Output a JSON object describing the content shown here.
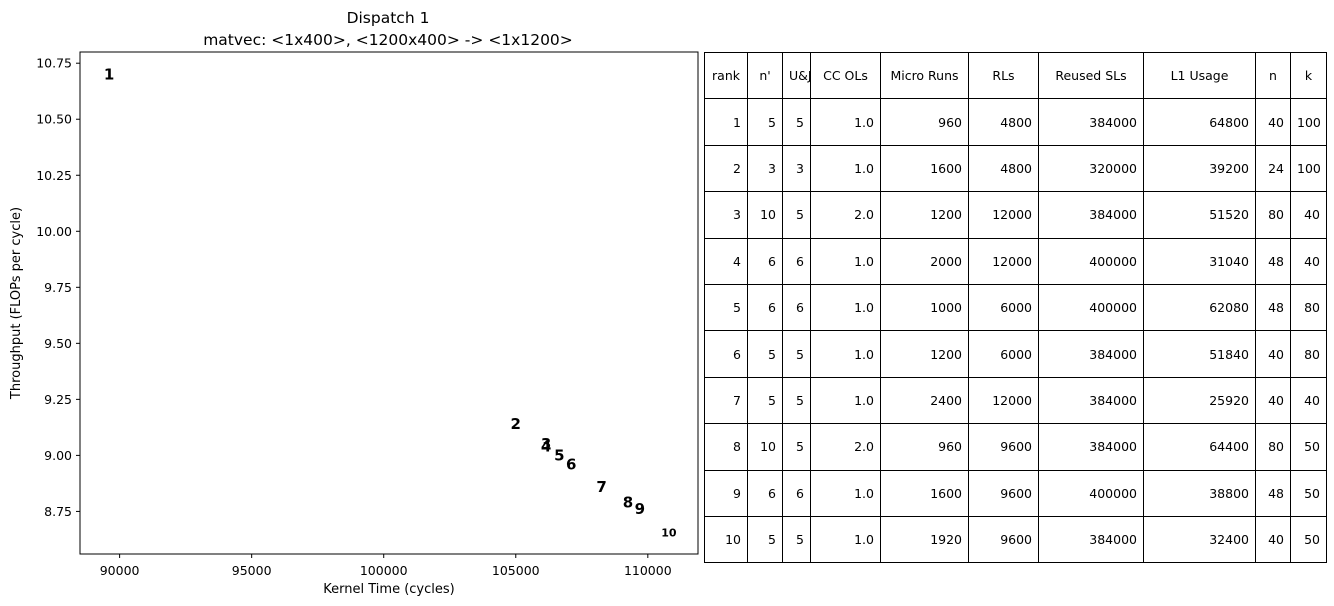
{
  "chart_data": {
    "type": "scatter",
    "title": "Dispatch 1",
    "subtitle": "matvec: <1x400>, <1200x400> -> <1x1200>",
    "xlabel": "Kernel Time (cycles)",
    "ylabel": "Throughput (FLOPs per cycle)",
    "xlim": [
      88500,
      111900
    ],
    "ylim": [
      8.56,
      10.8
    ],
    "xticks": [
      90000,
      95000,
      100000,
      105000,
      110000
    ],
    "yticks": [
      8.75,
      9.0,
      9.25,
      9.5,
      9.75,
      10.0,
      10.25,
      10.5,
      10.75
    ],
    "xtick_labels": [
      "90000",
      "95000",
      "100000",
      "105000",
      "110000"
    ],
    "ytick_labels": [
      "8.75",
      "9.00",
      "9.25",
      "9.50",
      "9.75",
      "10.00",
      "10.25",
      "10.50",
      "10.75"
    ],
    "grid": false,
    "points": [
      {
        "label": "1",
        "x": 89600,
        "y": 10.7
      },
      {
        "label": "2",
        "x": 105000,
        "y": 9.14
      },
      {
        "label": "3",
        "x": 106150,
        "y": 9.05
      },
      {
        "label": "4",
        "x": 106150,
        "y": 9.04
      },
      {
        "label": "5",
        "x": 106650,
        "y": 9.0
      },
      {
        "label": "6",
        "x": 107100,
        "y": 8.96
      },
      {
        "label": "7",
        "x": 108250,
        "y": 8.86
      },
      {
        "label": "8",
        "x": 109250,
        "y": 8.79
      },
      {
        "label": "9",
        "x": 109700,
        "y": 8.76
      },
      {
        "label": "10",
        "x": 110800,
        "y": 8.66
      }
    ]
  },
  "table": {
    "headers": [
      "rank",
      "n'",
      "U&J",
      "CC OLs",
      "Micro Runs",
      "RLs",
      "Reused SLs",
      "L1 Usage",
      "n",
      "k"
    ],
    "rows": [
      [
        "1",
        "5",
        "5",
        "1.0",
        "960",
        "4800",
        "384000",
        "64800",
        "40",
        "100"
      ],
      [
        "2",
        "3",
        "3",
        "1.0",
        "1600",
        "4800",
        "320000",
        "39200",
        "24",
        "100"
      ],
      [
        "3",
        "10",
        "5",
        "2.0",
        "1200",
        "12000",
        "384000",
        "51520",
        "80",
        "40"
      ],
      [
        "4",
        "6",
        "6",
        "1.0",
        "2000",
        "12000",
        "400000",
        "31040",
        "48",
        "40"
      ],
      [
        "5",
        "6",
        "6",
        "1.0",
        "1000",
        "6000",
        "400000",
        "62080",
        "48",
        "80"
      ],
      [
        "6",
        "5",
        "5",
        "1.0",
        "1200",
        "6000",
        "384000",
        "51840",
        "40",
        "80"
      ],
      [
        "7",
        "5",
        "5",
        "1.0",
        "2400",
        "12000",
        "384000",
        "25920",
        "40",
        "40"
      ],
      [
        "8",
        "10",
        "5",
        "2.0",
        "960",
        "9600",
        "384000",
        "64400",
        "80",
        "50"
      ],
      [
        "9",
        "6",
        "6",
        "1.0",
        "1600",
        "9600",
        "400000",
        "38800",
        "48",
        "50"
      ],
      [
        "10",
        "5",
        "5",
        "1.0",
        "1920",
        "9600",
        "384000",
        "32400",
        "40",
        "50"
      ]
    ]
  }
}
